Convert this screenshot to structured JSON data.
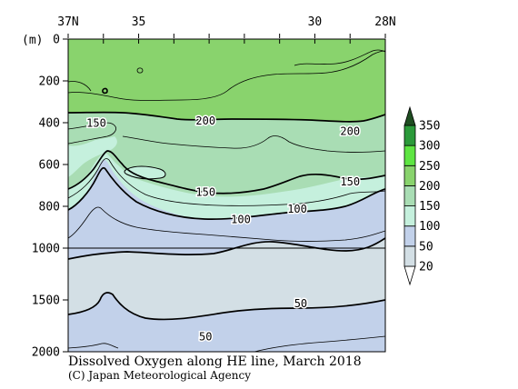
{
  "colors": {
    "background": "#ffffff",
    "levels": [
      {
        "range": "<20",
        "color": "#ffffff"
      },
      {
        "range": "20-50",
        "color": "#d3dfe5"
      },
      {
        "range": "50-100",
        "color": "#c2d1ea"
      },
      {
        "range": "100-150",
        "color": "#c5f0dd"
      },
      {
        "range": "150-200",
        "color": "#a9ddb4"
      },
      {
        "range": "200-250",
        "color": "#89d36d"
      },
      {
        "range": "250-300",
        "color": "#5ee542"
      },
      {
        "range": "300-350",
        "color": "#2b9a3a"
      },
      {
        "range": ">350",
        "color": "#1e4d21"
      }
    ],
    "contour_thick": "#000000",
    "contour_thin": "#000000"
  },
  "chart_data": {
    "type": "contour",
    "title": "Dissolved Oxygen along HE line, March 2018",
    "credit": "(C) Japan Meteorological Agency",
    "x_axis": {
      "ticks": [
        {
          "value": 37,
          "label": "37N"
        },
        {
          "value": 35,
          "label": "35"
        },
        {
          "value": 30,
          "label": "30"
        },
        {
          "value": 28,
          "label": "28N"
        }
      ],
      "range": [
        37,
        28
      ]
    },
    "y_axis": {
      "unit_label": "(m)",
      "ticks": [
        0,
        200,
        400,
        600,
        800,
        1000,
        1500,
        2000
      ],
      "range": [
        0,
        2000
      ],
      "break_at": 1000,
      "reference_line": 1000
    },
    "colorbar": {
      "labels": [
        "20",
        "50",
        "100",
        "150",
        "200",
        "250",
        "300",
        "350"
      ],
      "levels": [
        20,
        50,
        100,
        150,
        200,
        250,
        300,
        350
      ]
    },
    "contour_labels": [
      {
        "text": "150",
        "lat": 36.2,
        "depth": 400
      },
      {
        "text": "200",
        "lat": 33.1,
        "depth": 390
      },
      {
        "text": "200",
        "lat": 29.0,
        "depth": 440
      },
      {
        "text": "150",
        "lat": 33.1,
        "depth": 730
      },
      {
        "text": "150",
        "lat": 29.0,
        "depth": 680
      },
      {
        "text": "100",
        "lat": 32.1,
        "depth": 860
      },
      {
        "text": "100",
        "lat": 30.5,
        "depth": 810
      },
      {
        "text": "50",
        "lat": 30.4,
        "depth": 1530
      },
      {
        "text": "50",
        "lat": 33.1,
        "depth": 1850
      }
    ]
  }
}
